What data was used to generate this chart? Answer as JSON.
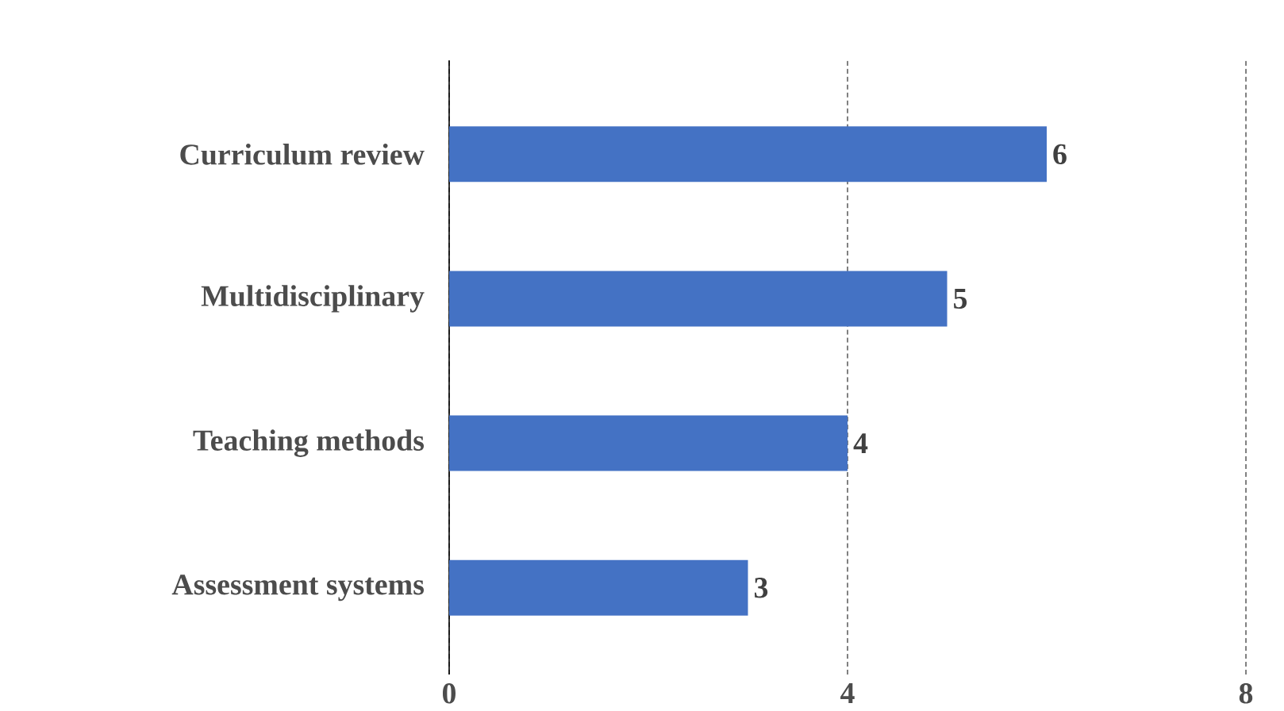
{
  "chart_data": {
    "type": "bar",
    "orientation": "horizontal",
    "categories": [
      "Curriculum review",
      "Multidisciplinary",
      "Teaching methods",
      "Assessment systems"
    ],
    "values": [
      6,
      5,
      4,
      3
    ],
    "color": "#4472c4",
    "xlim": [
      0,
      8
    ],
    "xticks": [
      0,
      4,
      8
    ],
    "grid": "x",
    "data_labels": true
  }
}
